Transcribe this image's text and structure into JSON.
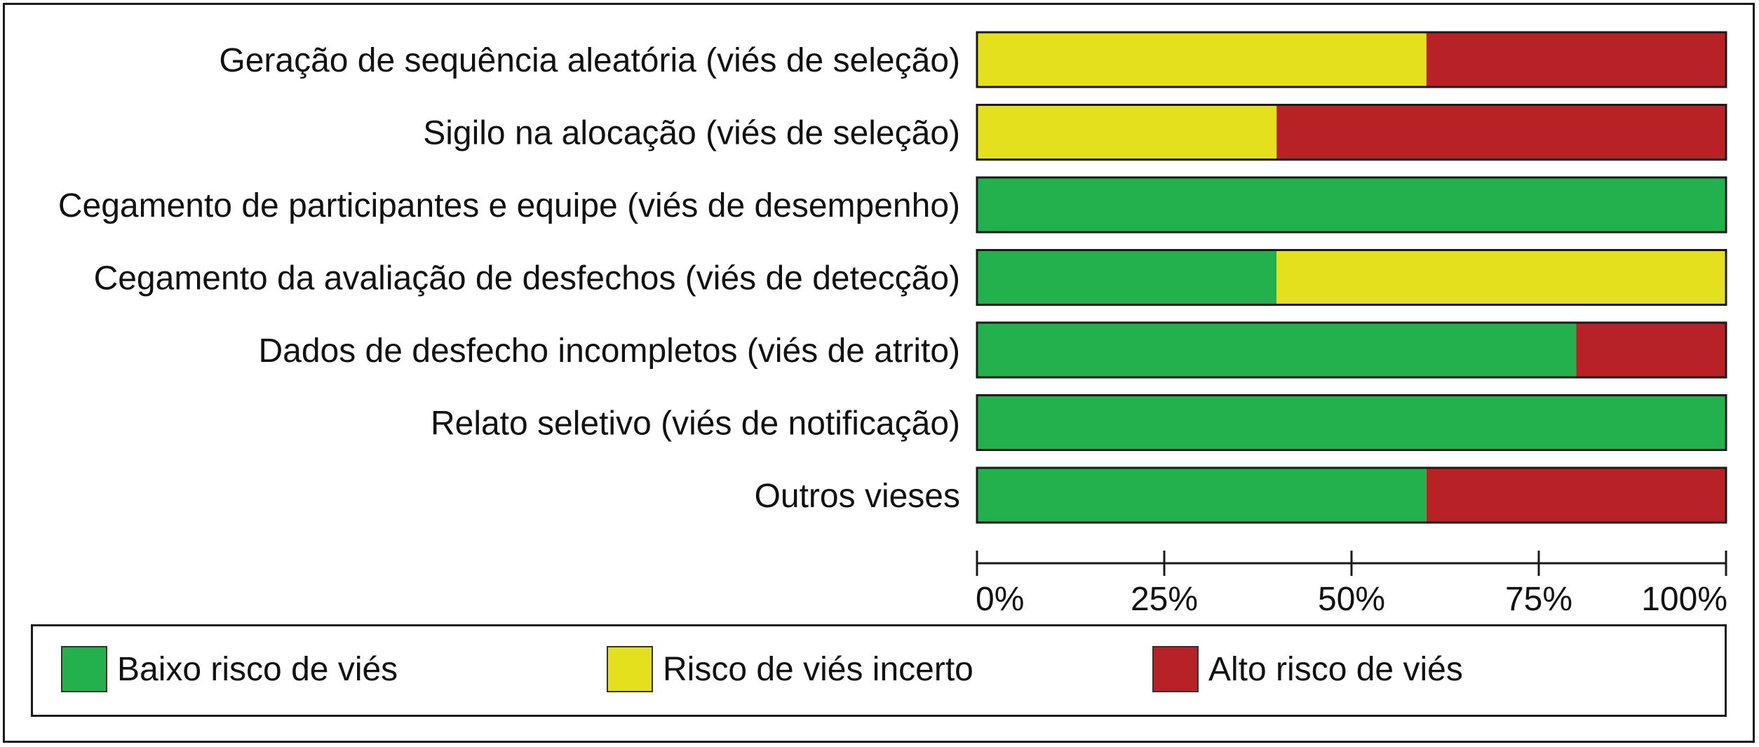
{
  "chart_data": {
    "type": "bar",
    "orientation": "horizontal",
    "stacked": true,
    "percent": true,
    "categories": [
      "Geração de sequência aleatória (viés de seleção)",
      "Sigilo na alocação (viés de seleção)",
      "Cegamento de participantes e equipe (viés de desempenho)",
      "Cegamento da avaliação de desfechos (viés de detecção)",
      "Dados de desfecho incompletos (viés de atrito)",
      "Relato seletivo (viés de notificação)",
      "Outros vieses"
    ],
    "series": [
      {
        "name": "Baixo risco de viés",
        "color": "#22b14c",
        "values": [
          0,
          0,
          100,
          40,
          80,
          100,
          60
        ]
      },
      {
        "name": "Risco de viés incerto",
        "color": "#e4e01e",
        "values": [
          60,
          40,
          0,
          60,
          0,
          0,
          0
        ]
      },
      {
        "name": "Alto risco de viés",
        "color": "#b82227",
        "values": [
          40,
          60,
          0,
          0,
          20,
          0,
          40
        ]
      }
    ],
    "xlim": [
      0,
      100
    ],
    "xticks": [
      "0%",
      "25%",
      "50%",
      "75%",
      "100%"
    ],
    "grid": false,
    "legend_position": "bottom"
  }
}
